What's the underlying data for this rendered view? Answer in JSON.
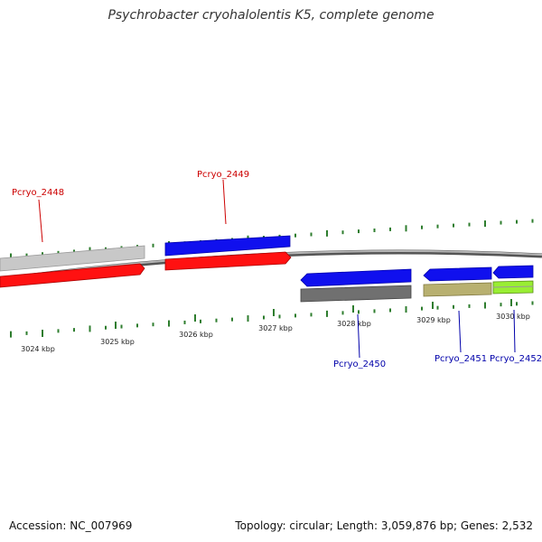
{
  "title": "Psychrobacter cryohalolentis K5, complete genome",
  "footer": {
    "accession": "Accession: NC_007969",
    "summary": "Topology: circular; Length: 3,059,876 bp; Genes: 2,532"
  },
  "colors": {
    "forward_label": "#cc0000",
    "reverse_label": "#0000aa",
    "tick": "#2e7d2e",
    "backbone": "#808080"
  },
  "ticks": [
    {
      "label": "3024 kbp"
    },
    {
      "label": "3025 kbp"
    },
    {
      "label": "3026 kbp"
    },
    {
      "label": "3027 kbp"
    },
    {
      "label": "3028 kbp"
    },
    {
      "label": "3029 kbp"
    },
    {
      "label": "3030 kbp"
    }
  ],
  "genes": [
    {
      "label": "Pcryo_2448",
      "strand": "forward",
      "color": "#ff0000"
    },
    {
      "label": "Pcryo_2449",
      "strand": "forward",
      "color": "#0000ee"
    },
    {
      "label": "Pcryo_2450",
      "strand": "reverse",
      "color": "#0000ee"
    },
    {
      "label": "Pcryo_2451",
      "strand": "reverse",
      "color": "#0000ee"
    },
    {
      "label": "Pcryo_2452",
      "strand": "reverse",
      "color": "#0000ee"
    }
  ]
}
